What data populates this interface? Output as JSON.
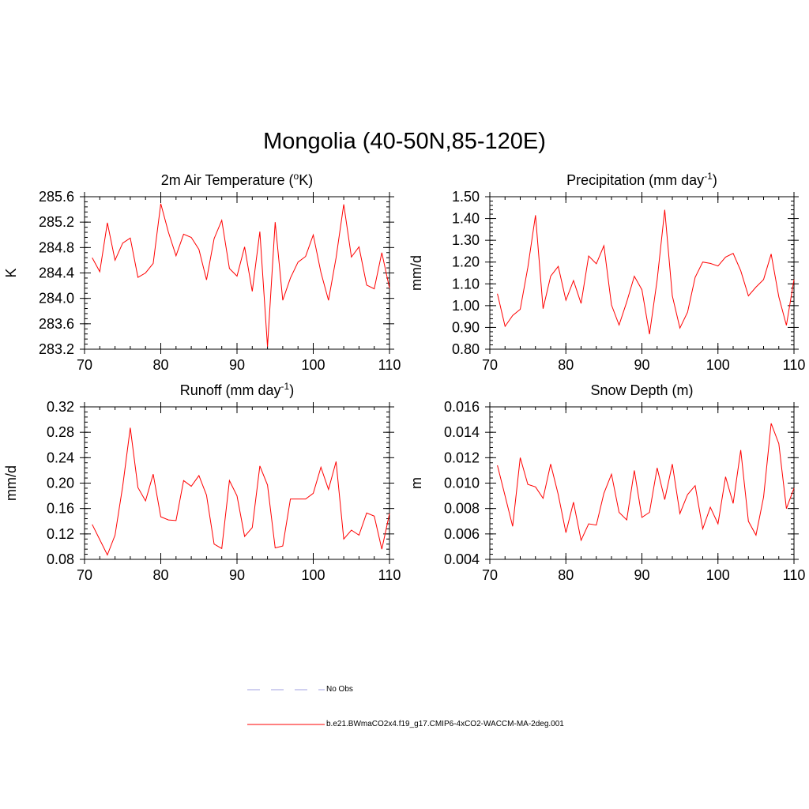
{
  "title": "Mongolia (40-50N,85-120E)",
  "colors": {
    "model_line": "#ff0000",
    "obs_line": "#a0a0e0",
    "axis": "#000000"
  },
  "legend": {
    "obs_label": "No Obs",
    "model_label": "b.e21.BWmaCO2x4.f19_g17.CMIP6-4xCO2-WACCM-MA-2deg.001"
  },
  "chart_data": [
    {
      "type": "line",
      "title": "2m Air Temperature (",
      "title_sup": "o",
      "title_post": "K)",
      "ylabel": "K",
      "xlabel": "",
      "xlim": [
        70,
        110
      ],
      "ylim": [
        283.2,
        285.6
      ],
      "xticks": [
        70,
        80,
        90,
        100,
        110
      ],
      "yticks": [
        "283.2",
        "283.6",
        "284.0",
        "284.4",
        "284.8",
        "285.2",
        "285.6"
      ],
      "yminor": 0.08,
      "series": [
        {
          "name": "b.e21.BWmaCO2x4.f19_g17.CMIP6-4xCO2-WACCM-MA-2deg.001",
          "x": [
            71,
            72,
            73,
            74,
            75,
            76,
            77,
            78,
            79,
            80,
            81,
            82,
            83,
            84,
            85,
            86,
            87,
            88,
            89,
            90,
            91,
            92,
            93,
            94,
            95,
            96,
            97,
            98,
            99,
            100,
            101,
            102,
            103,
            104,
            105,
            106,
            107,
            108,
            109,
            110
          ],
          "values": [
            284.64,
            284.42,
            285.19,
            284.6,
            284.87,
            284.95,
            284.33,
            284.4,
            284.55,
            285.49,
            285.04,
            284.67,
            285.01,
            284.96,
            284.77,
            284.29,
            284.94,
            285.23,
            284.47,
            284.35,
            284.81,
            284.11,
            285.05,
            283.24,
            285.2,
            283.97,
            284.32,
            284.57,
            284.66,
            285.0,
            284.41,
            283.97,
            284.64,
            285.48,
            284.65,
            284.81,
            284.21,
            284.15,
            284.72,
            284.16
          ]
        }
      ]
    },
    {
      "type": "line",
      "title": "Precipitation (mm day",
      "title_sup": "-1",
      "title_post": ")",
      "ylabel": "mm/d",
      "xlabel": "",
      "xlim": [
        70,
        110
      ],
      "ylim": [
        0.8,
        1.5
      ],
      "xticks": [
        70,
        80,
        90,
        100,
        110
      ],
      "yticks": [
        "0.80",
        "0.90",
        "1.00",
        "1.10",
        "1.20",
        "1.30",
        "1.40",
        "1.50"
      ],
      "yminor": 0.02,
      "series": [
        {
          "name": "b.e21.BWmaCO2x4.f19_g17.CMIP6-4xCO2-WACCM-MA-2deg.001",
          "x": [
            71,
            72,
            73,
            74,
            75,
            76,
            77,
            78,
            79,
            80,
            81,
            82,
            83,
            84,
            85,
            86,
            87,
            88,
            89,
            90,
            91,
            92,
            93,
            94,
            95,
            96,
            97,
            98,
            99,
            100,
            101,
            102,
            103,
            104,
            105,
            106,
            107,
            108,
            109,
            110
          ],
          "values": [
            1.055,
            0.905,
            0.955,
            0.983,
            1.175,
            1.415,
            0.986,
            1.135,
            1.18,
            1.025,
            1.115,
            1.01,
            1.228,
            1.192,
            1.275,
            1.003,
            0.911,
            1.017,
            1.135,
            1.073,
            0.869,
            1.118,
            1.44,
            1.045,
            0.897,
            0.97,
            1.13,
            1.2,
            1.194,
            1.182,
            1.223,
            1.24,
            1.16,
            1.045,
            1.085,
            1.12,
            1.237,
            1.04,
            0.91,
            1.12
          ]
        }
      ]
    },
    {
      "type": "line",
      "title": "Runoff (mm day",
      "title_sup": "-1",
      "title_post": ")",
      "ylabel": "mm/d",
      "xlabel": "",
      "xlim": [
        70,
        110
      ],
      "ylim": [
        0.08,
        0.32
      ],
      "xticks": [
        70,
        80,
        90,
        100,
        110
      ],
      "yticks": [
        "0.08",
        "0.12",
        "0.16",
        "0.20",
        "0.24",
        "0.28",
        "0.32"
      ],
      "yminor": 0.008,
      "series": [
        {
          "name": "b.e21.BWmaCO2x4.f19_g17.CMIP6-4xCO2-WACCM-MA-2deg.001",
          "x": [
            71,
            72,
            73,
            74,
            75,
            76,
            77,
            78,
            79,
            80,
            81,
            82,
            83,
            84,
            85,
            86,
            87,
            88,
            89,
            90,
            91,
            92,
            93,
            94,
            95,
            96,
            97,
            98,
            99,
            100,
            101,
            102,
            103,
            104,
            105,
            106,
            107,
            108,
            109,
            110
          ],
          "values": [
            0.135,
            0.111,
            0.087,
            0.118,
            0.195,
            0.287,
            0.193,
            0.172,
            0.214,
            0.147,
            0.142,
            0.141,
            0.204,
            0.195,
            0.212,
            0.181,
            0.104,
            0.097,
            0.204,
            0.18,
            0.116,
            0.13,
            0.227,
            0.197,
            0.098,
            0.101,
            0.175,
            0.175,
            0.175,
            0.184,
            0.225,
            0.19,
            0.234,
            0.112,
            0.126,
            0.118,
            0.153,
            0.148,
            0.096,
            0.152
          ]
        }
      ]
    },
    {
      "type": "line",
      "title": "Snow Depth (m)",
      "title_sup": "",
      "title_post": "",
      "ylabel": "m",
      "xlabel": "",
      "xlim": [
        70,
        110
      ],
      "ylim": [
        0.004,
        0.016
      ],
      "xticks": [
        70,
        80,
        90,
        100,
        110
      ],
      "yticks": [
        "0.004",
        "0.006",
        "0.008",
        "0.010",
        "0.012",
        "0.014",
        "0.016"
      ],
      "yminor": 0.0004,
      "series": [
        {
          "name": "b.e21.BWmaCO2x4.f19_g17.CMIP6-4xCO2-WACCM-MA-2deg.001",
          "x": [
            71,
            72,
            73,
            74,
            75,
            76,
            77,
            78,
            79,
            80,
            81,
            82,
            83,
            84,
            85,
            86,
            87,
            88,
            89,
            90,
            91,
            92,
            93,
            94,
            95,
            96,
            97,
            98,
            99,
            100,
            101,
            102,
            103,
            104,
            105,
            106,
            107,
            108,
            109,
            110
          ],
          "values": [
            0.0114,
            0.009,
            0.0066,
            0.012,
            0.0099,
            0.0097,
            0.0088,
            0.0115,
            0.0091,
            0.0061,
            0.0085,
            0.0055,
            0.0068,
            0.0067,
            0.0092,
            0.0107,
            0.0077,
            0.0071,
            0.011,
            0.0073,
            0.0077,
            0.0112,
            0.0087,
            0.0115,
            0.0076,
            0.0091,
            0.0098,
            0.0064,
            0.0081,
            0.0068,
            0.0105,
            0.0084,
            0.0126,
            0.007,
            0.0059,
            0.0089,
            0.0147,
            0.0131,
            0.008,
            0.0096
          ]
        }
      ]
    }
  ]
}
